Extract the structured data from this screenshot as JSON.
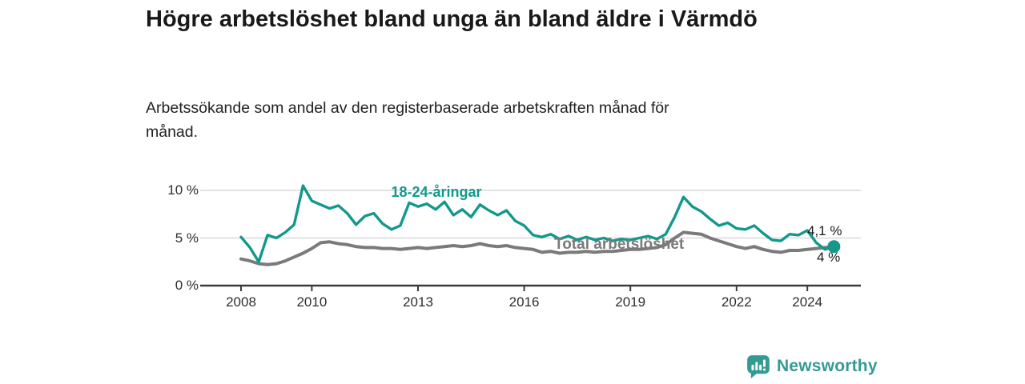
{
  "header": {
    "title": "Högre arbetslöshet bland unga än bland äldre i Värmdö",
    "subtitle": "Arbetssökande som andel av den registerbaserade arbetskraften månad för månad."
  },
  "chart_data": {
    "type": "line",
    "title": "Högre arbetslöshet bland unga än bland äldre i Värmdö",
    "subtitle": "Arbetssökande som andel av den registerbaserade arbetskraften månad för månad.",
    "unit": "%",
    "grid": "horizontal",
    "legend_position": "inline-annotations",
    "xlim": [
      2006.9,
      2025.5
    ],
    "ylim": [
      0,
      11
    ],
    "x": [
      2008,
      2008.25,
      2008.5,
      2008.75,
      2009,
      2009.25,
      2009.5,
      2009.75,
      2010,
      2010.25,
      2010.5,
      2010.75,
      2011,
      2011.25,
      2011.5,
      2011.75,
      2012,
      2012.25,
      2012.5,
      2012.75,
      2013,
      2013.25,
      2013.5,
      2013.75,
      2014,
      2014.25,
      2014.5,
      2014.75,
      2015,
      2015.25,
      2015.5,
      2015.75,
      2016,
      2016.25,
      2016.5,
      2016.75,
      2017,
      2017.25,
      2017.5,
      2017.75,
      2018,
      2018.25,
      2018.5,
      2018.75,
      2019,
      2019.25,
      2019.5,
      2019.75,
      2020,
      2020.25,
      2020.5,
      2020.75,
      2021,
      2021.25,
      2021.5,
      2021.75,
      2022,
      2022.25,
      2022.5,
      2022.75,
      2023,
      2023.25,
      2023.5,
      2023.75,
      2024,
      2024.25,
      2024.5,
      2024.75
    ],
    "series": [
      {
        "name": "18-24-åringar",
        "color": "#12998b",
        "values": [
          5.1,
          4.0,
          2.5,
          5.3,
          5.0,
          5.6,
          6.4,
          10.5,
          8.9,
          8.5,
          8.1,
          8.4,
          7.6,
          6.4,
          7.3,
          7.6,
          6.5,
          5.9,
          6.3,
          8.7,
          8.3,
          8.6,
          8.0,
          8.8,
          7.4,
          8.0,
          7.2,
          8.5,
          7.9,
          7.4,
          7.9,
          6.8,
          6.3,
          5.3,
          5.1,
          5.4,
          4.9,
          5.2,
          4.8,
          5.1,
          4.8,
          5.0,
          4.7,
          4.9,
          4.8,
          5.0,
          5.2,
          4.9,
          5.4,
          7.2,
          9.3,
          8.3,
          7.8,
          7.0,
          6.3,
          6.6,
          6.0,
          5.9,
          6.3,
          5.5,
          4.8,
          4.7,
          5.4,
          5.3,
          5.8,
          4.5,
          3.8,
          4.1
        ]
      },
      {
        "name": "Total arbetslöshet",
        "color": "#7a7a7a",
        "values": [
          2.8,
          2.6,
          2.3,
          2.2,
          2.3,
          2.6,
          3.0,
          3.4,
          3.9,
          4.5,
          4.6,
          4.4,
          4.3,
          4.1,
          4.0,
          4.0,
          3.9,
          3.9,
          3.8,
          3.9,
          4.0,
          3.9,
          4.0,
          4.1,
          4.2,
          4.1,
          4.2,
          4.4,
          4.2,
          4.1,
          4.2,
          4.0,
          3.9,
          3.8,
          3.5,
          3.6,
          3.4,
          3.5,
          3.5,
          3.6,
          3.5,
          3.6,
          3.6,
          3.7,
          3.8,
          3.8,
          3.9,
          4.0,
          4.3,
          5.0,
          5.6,
          5.5,
          5.4,
          5.0,
          4.7,
          4.4,
          4.1,
          3.9,
          4.1,
          3.8,
          3.6,
          3.5,
          3.7,
          3.7,
          3.8,
          3.9,
          4.0,
          4.0
        ]
      }
    ],
    "y_ticks": [
      {
        "value": 0,
        "label": "0 %"
      },
      {
        "value": 5,
        "label": "5 %"
      },
      {
        "value": 10,
        "label": "10 %"
      }
    ],
    "x_ticks": [
      {
        "value": 2008,
        "label": "2008"
      },
      {
        "value": 2010,
        "label": "2010"
      },
      {
        "value": 2013,
        "label": "2013"
      },
      {
        "value": 2016,
        "label": "2016"
      },
      {
        "value": 2019,
        "label": "2019"
      },
      {
        "value": 2022,
        "label": "2022"
      },
      {
        "value": 2024,
        "label": "2024"
      }
    ],
    "end_labels": [
      {
        "series": "18-24-åringar",
        "text": "4,1 %"
      },
      {
        "series": "Total arbetslöshet",
        "text": "4 %"
      }
    ],
    "end_dot": {
      "series": "18-24-åringar",
      "x": 2024.75,
      "value": 4.1
    }
  },
  "footer": {
    "brand": "Newsworthy"
  },
  "colors": {
    "accent_teal": "#12998b",
    "line_gray": "#7a7a7a",
    "grid": "#d9d9d9",
    "axis": "#3b3b3b",
    "text": "#1a1a1a",
    "logo_teal": "#359a94"
  }
}
